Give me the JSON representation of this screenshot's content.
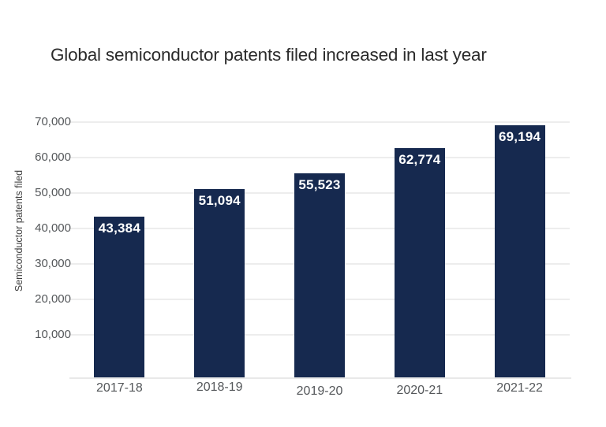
{
  "title": "Global semiconductor patents filed increased in last year",
  "chart_data": {
    "type": "bar",
    "title": "Global semiconductor patents filed increased in last year",
    "categories": [
      "2017-18",
      "2018-19",
      "2019-20",
      "2020-21",
      "2021-22"
    ],
    "values": [
      43384,
      51094,
      55523,
      62774,
      69194
    ],
    "value_labels": [
      "43,384",
      "51,094",
      "55,523",
      "62,774",
      "69,194"
    ],
    "xlabel": "",
    "ylabel": "Semiconductor patents filed",
    "ylim": [
      0,
      70000
    ],
    "yticks": [
      10000,
      20000,
      30000,
      40000,
      50000,
      60000,
      70000
    ],
    "ytick_labels": [
      "10,000",
      "20,000",
      "30,000",
      "40,000",
      "50,000",
      "60,000",
      "70,000"
    ],
    "grid": "horizontal-only",
    "legend": "none",
    "colors": {
      "bar": "#16294f",
      "bar_value_label": "#ffffff",
      "axis_text": "#54575a",
      "gridline": "#ededed",
      "title_text": "#2b2b2b",
      "background": "#ffffff"
    }
  }
}
